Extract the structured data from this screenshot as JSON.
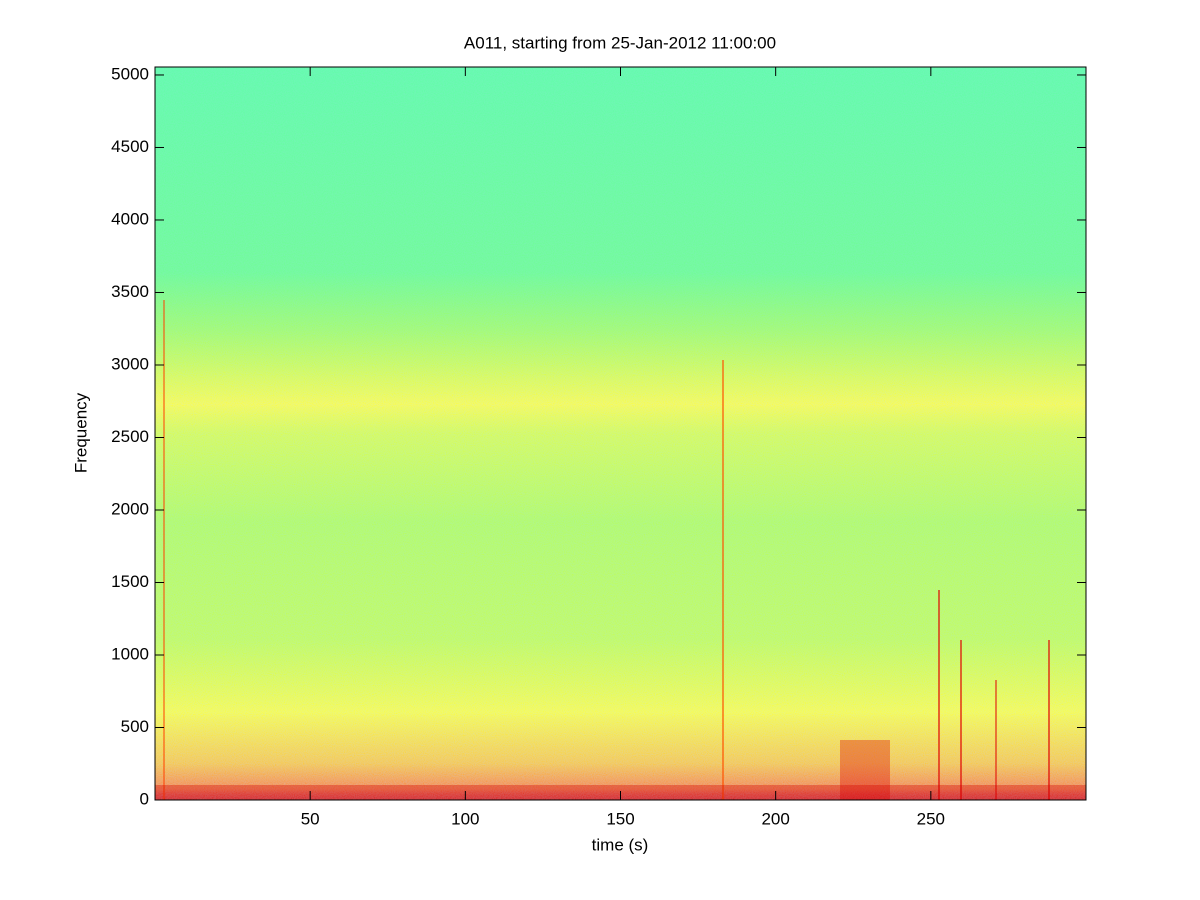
{
  "chart_data": {
    "type": "spectrogram",
    "title": "A011, starting from 25-Jan-2012 11:00:00",
    "x_label": "time (s)",
    "y_label": "Frequency",
    "xlim": [
      0,
      300
    ],
    "xticks": [
      50,
      100,
      150,
      200,
      250
    ],
    "ylim": [
      0,
      5055
    ],
    "yticks": [
      0,
      500,
      1000,
      1500,
      2000,
      2500,
      3000,
      3500,
      4000,
      4500,
      5000
    ]
  }
}
